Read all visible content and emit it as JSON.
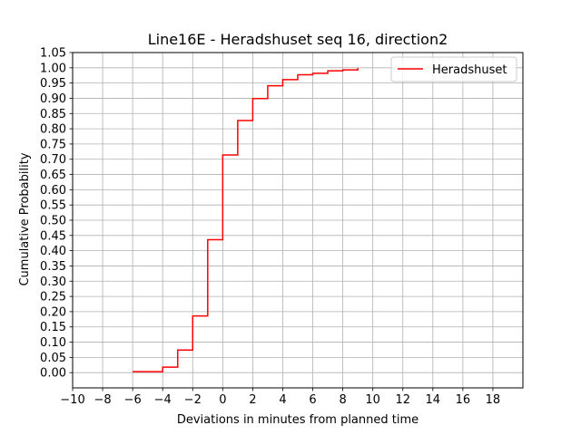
{
  "chart_data": {
    "type": "line",
    "step": true,
    "title": "Line16E - Heradshuset seq 16, direction2",
    "xlabel": "Deviations in minutes from planned time",
    "ylabel": "Cumulative Probability",
    "xlim": [
      -10,
      20
    ],
    "ylim": [
      -0.05,
      1.05
    ],
    "xticks": [
      -10,
      -8,
      -6,
      -4,
      -2,
      0,
      2,
      4,
      6,
      8,
      10,
      12,
      14,
      16,
      18
    ],
    "xtick_labels": [
      "−10",
      "−8",
      "−6",
      "−4",
      "−2",
      "0",
      "2",
      "4",
      "6",
      "8",
      "10",
      "12",
      "14",
      "16",
      "18"
    ],
    "yticks": [
      0.0,
      0.05,
      0.1,
      0.15,
      0.2,
      0.25,
      0.3,
      0.35,
      0.4,
      0.45,
      0.5,
      0.55,
      0.6,
      0.65,
      0.7,
      0.75,
      0.8,
      0.85,
      0.9,
      0.95,
      1.0,
      1.05
    ],
    "ytick_labels": [
      "0.00",
      "0.05",
      "0.10",
      "0.15",
      "0.20",
      "0.25",
      "0.30",
      "0.35",
      "0.40",
      "0.45",
      "0.50",
      "0.55",
      "0.60",
      "0.65",
      "0.70",
      "0.75",
      "0.80",
      "0.85",
      "0.90",
      "0.95",
      "1.00",
      "1.05"
    ],
    "grid": true,
    "legend_position": "top-right",
    "series": [
      {
        "name": "Heradshuset",
        "color": "#ff0000",
        "x": [
          -6,
          -5,
          -4,
          -3,
          -2,
          -1,
          0,
          1,
          2,
          3,
          4,
          5,
          6,
          7,
          8,
          9
        ],
        "y": [
          0.003,
          0.003,
          0.018,
          0.074,
          0.186,
          0.436,
          0.714,
          0.827,
          0.899,
          0.941,
          0.961,
          0.977,
          0.982,
          0.99,
          0.993,
          1.0
        ]
      }
    ]
  }
}
